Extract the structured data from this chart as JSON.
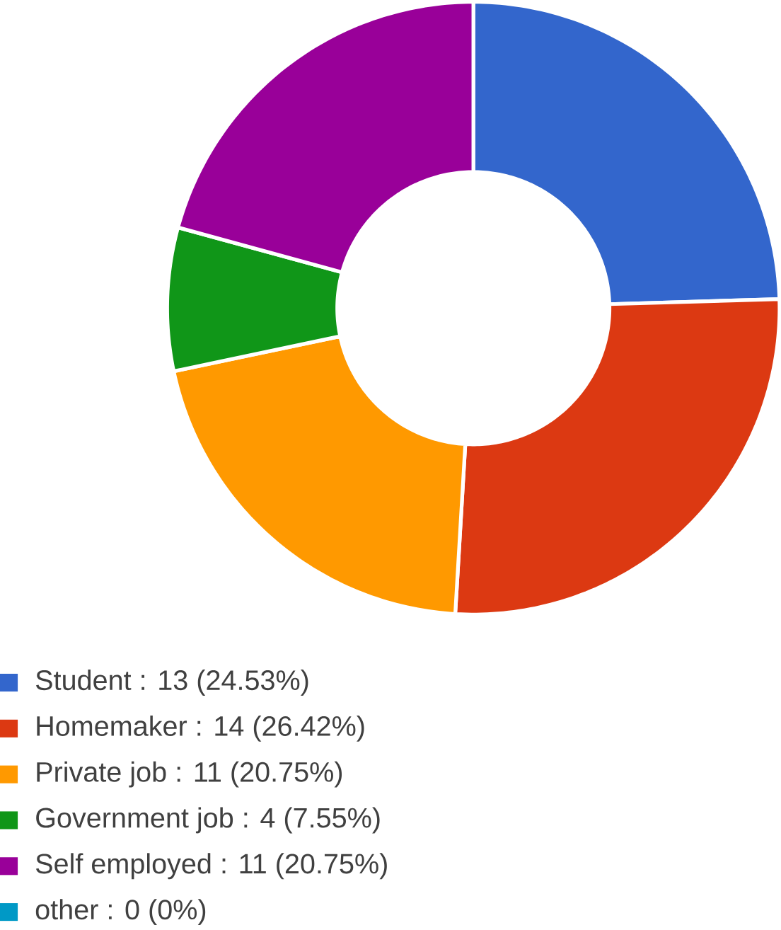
{
  "chart_data": {
    "type": "donut",
    "categories": [
      "Student",
      "Homemaker",
      "Private job",
      "Government job",
      "Self employed",
      "other"
    ],
    "values": [
      13,
      14,
      11,
      4,
      11,
      0
    ],
    "value_labels": [
      ": 13 (24.53%)",
      ": 14 (26.42%)",
      ": 11 (20.75%)",
      ": 4 (7.55%)",
      ": 11 (20.75%)",
      ": 0 (0%)"
    ],
    "colors": [
      "#3366cc",
      "#dc3912",
      "#ff9900",
      "#109618",
      "#990099",
      "#0099c6"
    ],
    "legend": "bottom left"
  }
}
